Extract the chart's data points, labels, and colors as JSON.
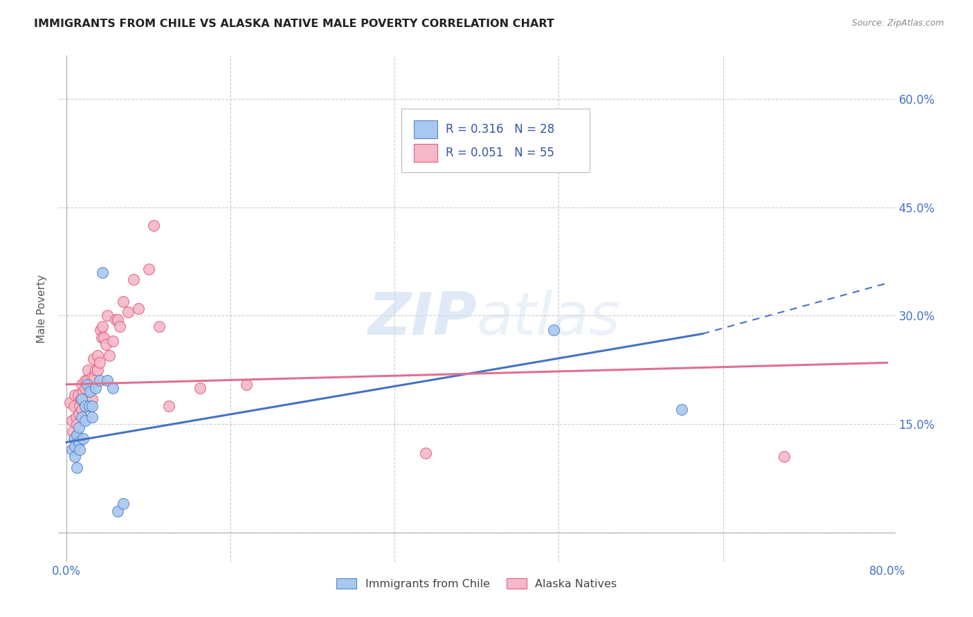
{
  "title": "IMMIGRANTS FROM CHILE VS ALASKA NATIVE MALE POVERTY CORRELATION CHART",
  "source_text": "Source: ZipAtlas.com",
  "ylabel": "Male Poverty",
  "y_ticks": [
    0.0,
    0.15,
    0.3,
    0.45,
    0.6
  ],
  "x_ticks": [
    0.0,
    0.16,
    0.32,
    0.48,
    0.64,
    0.8
  ],
  "blue_fill": "#a8c8f0",
  "pink_fill": "#f5b8c8",
  "blue_edge": "#5585c5",
  "pink_edge": "#e06080",
  "blue_line": "#4472c4",
  "pink_line": "#e07090",
  "grid_color": "#cccccc",
  "bg_color": "#ffffff",
  "title_color": "#222222",
  "axis_tick_color": "#4472c4",
  "watermark_color": "#c8d8f0",
  "legend_text_color": "#3355aa",
  "blue_R": "0.316",
  "blue_N": "28",
  "pink_R": "0.051",
  "pink_N": "55",
  "blue_x": [
    0.005,
    0.007,
    0.008,
    0.008,
    0.01,
    0.01,
    0.012,
    0.012,
    0.013,
    0.015,
    0.015,
    0.016,
    0.018,
    0.018,
    0.02,
    0.022,
    0.023,
    0.025,
    0.025,
    0.028,
    0.032,
    0.035,
    0.04,
    0.045,
    0.05,
    0.055,
    0.475,
    0.6
  ],
  "blue_y": [
    0.115,
    0.13,
    0.105,
    0.12,
    0.09,
    0.135,
    0.145,
    0.125,
    0.115,
    0.16,
    0.185,
    0.13,
    0.155,
    0.175,
    0.205,
    0.175,
    0.195,
    0.175,
    0.16,
    0.2,
    0.21,
    0.36,
    0.21,
    0.2,
    0.03,
    0.04,
    0.28,
    0.17
  ],
  "pink_x": [
    0.003,
    0.005,
    0.006,
    0.007,
    0.008,
    0.008,
    0.009,
    0.01,
    0.01,
    0.011,
    0.012,
    0.013,
    0.014,
    0.015,
    0.015,
    0.016,
    0.017,
    0.018,
    0.018,
    0.019,
    0.02,
    0.021,
    0.022,
    0.023,
    0.025,
    0.025,
    0.026,
    0.027,
    0.028,
    0.03,
    0.03,
    0.032,
    0.033,
    0.034,
    0.035,
    0.036,
    0.038,
    0.04,
    0.042,
    0.045,
    0.048,
    0.05,
    0.052,
    0.055,
    0.06,
    0.065,
    0.07,
    0.08,
    0.085,
    0.09,
    0.1,
    0.13,
    0.175,
    0.35,
    0.7
  ],
  "pink_y": [
    0.18,
    0.155,
    0.14,
    0.175,
    0.19,
    0.13,
    0.16,
    0.135,
    0.15,
    0.19,
    0.165,
    0.175,
    0.185,
    0.205,
    0.17,
    0.195,
    0.18,
    0.2,
    0.21,
    0.185,
    0.21,
    0.225,
    0.175,
    0.2,
    0.215,
    0.185,
    0.24,
    0.215,
    0.225,
    0.225,
    0.245,
    0.235,
    0.28,
    0.27,
    0.285,
    0.27,
    0.26,
    0.3,
    0.245,
    0.265,
    0.295,
    0.295,
    0.285,
    0.32,
    0.305,
    0.35,
    0.31,
    0.365,
    0.425,
    0.285,
    0.175,
    0.2,
    0.205,
    0.11,
    0.105
  ],
  "blue_line_x0": 0.0,
  "blue_line_x1": 0.62,
  "blue_line_x2": 0.8,
  "blue_line_y0": 0.125,
  "blue_line_y1": 0.275,
  "blue_line_y2": 0.345,
  "pink_line_x0": 0.0,
  "pink_line_x1": 0.8,
  "pink_line_y0": 0.205,
  "pink_line_y1": 0.235
}
